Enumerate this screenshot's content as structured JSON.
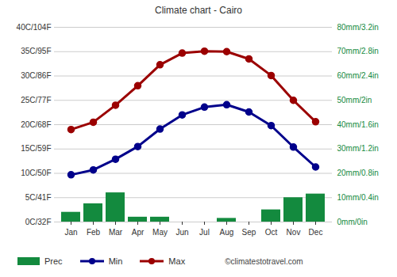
{
  "chart_data": {
    "type": "bar",
    "title": "Climate chart - Cairo",
    "categories": [
      "Jan",
      "Feb",
      "Mar",
      "Apr",
      "May",
      "Jun",
      "Jul",
      "Aug",
      "Sep",
      "Oct",
      "Nov",
      "Dec"
    ],
    "series": [
      {
        "name": "Prec",
        "type": "bar",
        "axis": "y2",
        "color": "#138a3e",
        "values": [
          4,
          7.5,
          12,
          2,
          2,
          0,
          0,
          1.5,
          0,
          5,
          10,
          11.5
        ]
      },
      {
        "name": "Min",
        "type": "line",
        "color": "#00008b",
        "marker": "circle",
        "values": [
          9.7,
          10.7,
          12.9,
          15.5,
          19.1,
          22,
          23.6,
          24.1,
          22.6,
          19.8,
          15.4,
          11.3
        ]
      },
      {
        "name": "Max",
        "type": "line",
        "color": "#9b0000",
        "marker": "circle",
        "values": [
          19,
          20.5,
          24,
          28,
          32.3,
          34.7,
          35.1,
          35,
          33.5,
          30.1,
          25,
          20.6
        ]
      }
    ],
    "ylim": [
      0,
      40
    ],
    "yticks": [
      {
        "value": 0,
        "label": "0C/32F"
      },
      {
        "value": 5,
        "label": "5C/41F"
      },
      {
        "value": 10,
        "label": "10C/50F"
      },
      {
        "value": 15,
        "label": "15C/59F"
      },
      {
        "value": 20,
        "label": "20C/68F"
      },
      {
        "value": 25,
        "label": "25C/77F"
      },
      {
        "value": 30,
        "label": "30C/86F"
      },
      {
        "value": 35,
        "label": "35C/95F"
      },
      {
        "value": 40,
        "label": "40C/104F"
      }
    ],
    "y2lim": [
      0,
      80
    ],
    "y2ticks": [
      {
        "value": 0,
        "label": "0mm/0in"
      },
      {
        "value": 10,
        "label": "10mm/0.4in"
      },
      {
        "value": 20,
        "label": "20mm/0.8in"
      },
      {
        "value": 30,
        "label": "30mm/1.2in"
      },
      {
        "value": 40,
        "label": "40mm/1.6in"
      },
      {
        "value": 50,
        "label": "50mm/2in"
      },
      {
        "value": 60,
        "label": "60mm/2.4in"
      },
      {
        "value": 70,
        "label": "70mm/2.8in"
      },
      {
        "value": 80,
        "label": "80mm/3.2in"
      }
    ],
    "grid": true,
    "legend": "bottom",
    "annotations": [
      "©climatestotravel.com"
    ]
  }
}
